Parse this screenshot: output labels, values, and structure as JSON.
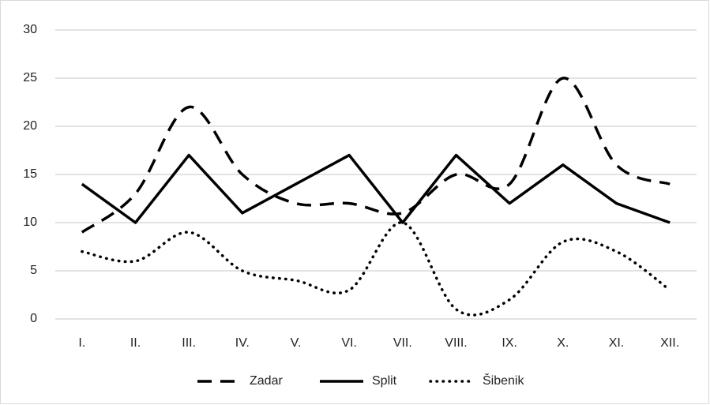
{
  "chart_data": {
    "type": "line",
    "categories": [
      "I.",
      "II.",
      "III.",
      "IV.",
      "V.",
      "VI.",
      "VII.",
      "VIII.",
      "IX.",
      "X.",
      "XI.",
      "XII."
    ],
    "series": [
      {
        "name": "Zadar",
        "color": "#000000",
        "line_style": "dashed",
        "smooth": true,
        "values": [
          9,
          13,
          22,
          15,
          12,
          12,
          11,
          15,
          14,
          25,
          16,
          14
        ]
      },
      {
        "name": "Split",
        "color": "#000000",
        "line_style": "solid",
        "smooth": false,
        "values": [
          14,
          10,
          17,
          11,
          14,
          17,
          10,
          17,
          12,
          16,
          12,
          10
        ]
      },
      {
        "name": "Šibenik",
        "color": "#000000",
        "line_style": "dotted",
        "smooth": true,
        "values": [
          7,
          6,
          9,
          5,
          4,
          3,
          10,
          1,
          2,
          8,
          7,
          3
        ]
      }
    ],
    "ylim": [
      0,
      30
    ],
    "yticks": [
      0,
      5,
      10,
      15,
      20,
      25,
      30
    ],
    "grid": true,
    "legend": "bottom"
  }
}
